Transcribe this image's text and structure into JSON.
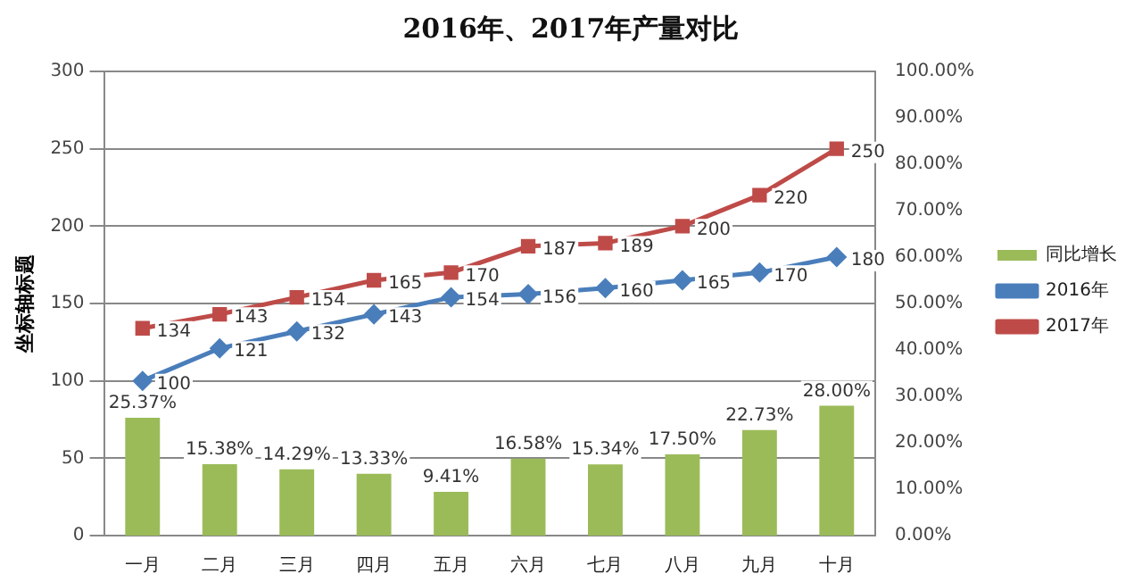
{
  "chart_data": {
    "type": "bar",
    "title": "2016年、2017年产量对比",
    "ylabel": "坐标轴标题",
    "categories": [
      "一月",
      "二月",
      "三月",
      "四月",
      "五月",
      "六月",
      "七月",
      "八月",
      "九月",
      "十月"
    ],
    "series": [
      {
        "name": "同比增长",
        "axis": "y2",
        "color": "#9bbb59",
        "values": [
          25.37,
          15.38,
          14.29,
          13.33,
          9.41,
          16.58,
          15.34,
          17.5,
          22.73,
          28.0
        ],
        "value_labels": [
          "25.37%",
          "15.38%",
          "14.29%",
          "13.33%",
          "9.41%",
          "16.58%",
          "15.34%",
          "17.50%",
          "22.73%",
          "28.00%"
        ]
      },
      {
        "name": "2016年",
        "type": "line",
        "color": "#4a7ebb",
        "marker": "diamond",
        "values": [
          100,
          121,
          132,
          143,
          154,
          156,
          160,
          165,
          170,
          180
        ],
        "value_labels": [
          "100",
          "121",
          "132",
          "143",
          "154",
          "156",
          "160",
          "165",
          "170",
          "180"
        ]
      },
      {
        "name": "2017年",
        "type": "line",
        "color": "#be4b48",
        "marker": "square",
        "values": [
          134,
          143,
          154,
          165,
          170,
          187,
          189,
          200,
          220,
          250
        ],
        "value_labels": [
          "134",
          "143",
          "154",
          "165",
          "170",
          "187",
          "189",
          "200",
          "220",
          "250"
        ]
      }
    ],
    "ylim": [
      0,
      300
    ],
    "yticks": [
      0,
      50,
      100,
      150,
      200,
      250,
      300
    ],
    "y2lim": [
      0,
      100
    ],
    "y2ticks": [
      {
        "value": 0,
        "label": "0.00%"
      },
      {
        "value": 10,
        "label": "10.00%"
      },
      {
        "value": 20,
        "label": "20.00%"
      },
      {
        "value": 30,
        "label": "30.00%"
      },
      {
        "value": 40,
        "label": "40.00%"
      },
      {
        "value": 50,
        "label": "50.00%"
      },
      {
        "value": 60,
        "label": "60.00%"
      },
      {
        "value": 70,
        "label": "70.00%"
      },
      {
        "value": 80,
        "label": "80.00%"
      },
      {
        "value": 90,
        "label": "90.00%"
      },
      {
        "value": 100,
        "label": "100.00%"
      }
    ],
    "grid": "y",
    "legend": "right"
  }
}
